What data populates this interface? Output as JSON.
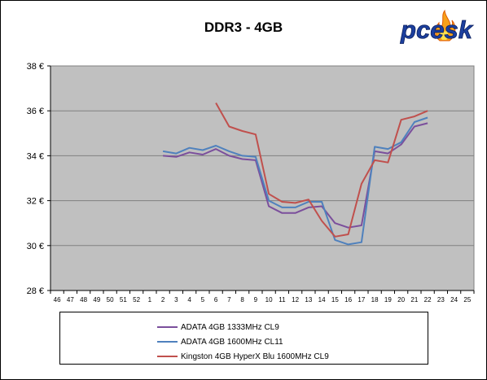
{
  "logo_text": "pcesk",
  "chart_data": {
    "type": "line",
    "title": "DDR3 - 4GB",
    "categories": [
      "46",
      "47",
      "48",
      "49",
      "50",
      "51",
      "52",
      "1",
      "2",
      "3",
      "4",
      "5",
      "6",
      "7",
      "8",
      "9",
      "10",
      "11",
      "12",
      "13",
      "14",
      "15",
      "16",
      "17",
      "18",
      "19",
      "20",
      "21",
      "22",
      "23",
      "24",
      "25"
    ],
    "ylim": [
      28,
      38
    ],
    "yticks": [
      28,
      30,
      32,
      34,
      36,
      38
    ],
    "ytick_labels": [
      "28 €",
      "30 €",
      "32 €",
      "34 €",
      "36 €",
      "38 €"
    ],
    "grid": true,
    "legend_position": "bottom",
    "series": [
      {
        "name": "ADATA 4GB 1333MHz CL9",
        "color": "#7b4f9c",
        "values": [
          null,
          null,
          null,
          null,
          null,
          null,
          null,
          null,
          34.0,
          33.95,
          34.15,
          34.05,
          34.3,
          34.0,
          33.85,
          33.8,
          31.75,
          31.45,
          31.45,
          31.7,
          31.75,
          31.0,
          30.8,
          30.9,
          34.2,
          34.1,
          34.5,
          35.3,
          35.45,
          null,
          null,
          null
        ]
      },
      {
        "name": "ADATA 4GB 1600MHz CL11",
        "color": "#4f81bd",
        "values": [
          null,
          null,
          null,
          null,
          null,
          null,
          null,
          null,
          34.2,
          34.1,
          34.35,
          34.25,
          34.45,
          34.2,
          34.0,
          33.95,
          32.0,
          31.7,
          31.7,
          31.95,
          31.95,
          30.25,
          30.05,
          30.15,
          34.4,
          34.3,
          34.6,
          35.5,
          35.7,
          null,
          null,
          null
        ]
      },
      {
        "name": "Kingston 4GB HyperX Blu 1600MHz CL9",
        "color": "#c0504d",
        "values": [
          null,
          null,
          null,
          null,
          null,
          null,
          null,
          null,
          null,
          null,
          null,
          null,
          36.35,
          35.3,
          35.1,
          34.95,
          32.3,
          31.95,
          31.9,
          32.05,
          31.1,
          30.4,
          30.5,
          32.75,
          33.8,
          33.7,
          35.6,
          35.75,
          36.0,
          null,
          null,
          null
        ]
      }
    ]
  }
}
